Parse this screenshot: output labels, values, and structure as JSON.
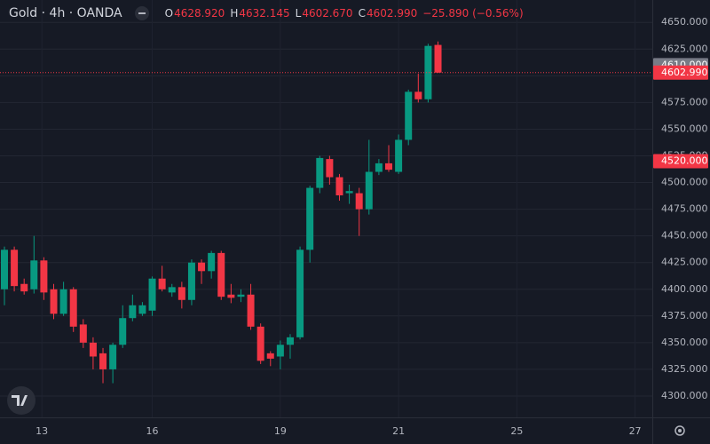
{
  "chart_data": {
    "type": "candlestick",
    "symbol": "Gold · 4h · OANDA",
    "ohlc_header": [
      {
        "key": "O",
        "value": 4628.92,
        "label": "4628.920"
      },
      {
        "key": "H",
        "value": 4632.145,
        "label": "4632.145"
      },
      {
        "key": "L",
        "value": 4602.67,
        "label": "4602.670"
      },
      {
        "key": "C",
        "value": 4602.99,
        "label": "4602.990"
      }
    ],
    "change": "−25.890 (−0.56%)",
    "up_color": "#089981",
    "down_color": "#f23645",
    "x": [
      0,
      1,
      2,
      3,
      4,
      5,
      6,
      7,
      8,
      9,
      10,
      11,
      12,
      13,
      14,
      15,
      16,
      17,
      18,
      19,
      20,
      21,
      22,
      23,
      24,
      25,
      26,
      27,
      28,
      29,
      30,
      31,
      32,
      33,
      34,
      35,
      36,
      37,
      38,
      39,
      40,
      41,
      42,
      43,
      44
    ],
    "open": [
      4400,
      4437,
      4405,
      4400,
      4427,
      4400,
      4377,
      4400,
      4367,
      4350,
      4340,
      4325,
      4348,
      4373,
      4377,
      4380,
      4410,
      4397,
      4402,
      4390,
      4425,
      4417,
      4434,
      4395,
      4393,
      4395,
      4365,
      4340,
      4337,
      4348,
      4355,
      4437,
      4495,
      4522,
      4505,
      4490,
      4490,
      4475,
      4510,
      4518,
      4510,
      4540,
      4585,
      4578,
      4628.92
    ],
    "high": [
      4440,
      4440,
      4410,
      4450,
      4430,
      4405,
      4407,
      4402,
      4372,
      4355,
      4345,
      4350,
      4385,
      4395,
      4388,
      4412,
      4422,
      4405,
      4407,
      4428,
      4428,
      4436,
      4436,
      4405,
      4400,
      4405,
      4368,
      4342,
      4352,
      4358,
      4440,
      4497,
      4525,
      4525,
      4508,
      4498,
      4495,
      4540,
      4522,
      4535,
      4545,
      4587,
      4602,
      4630,
      4632.145
    ],
    "low": [
      4385,
      4398,
      4395,
      4396,
      4390,
      4372,
      4375,
      4360,
      4345,
      4325,
      4312,
      4312,
      4345,
      4370,
      4375,
      4375,
      4398,
      4393,
      4382,
      4385,
      4405,
      4410,
      4390,
      4387,
      4388,
      4362,
      4330,
      4328,
      4325,
      4335,
      4353,
      4425,
      4490,
      4498,
      4483,
      4480,
      4450,
      4470,
      4507,
      4510,
      4508,
      4535,
      4575,
      4575,
      4602.67
    ],
    "close": [
      4437,
      4403,
      4398,
      4427,
      4397,
      4377,
      4400,
      4365,
      4350,
      4337,
      4325,
      4348,
      4373,
      4385,
      4385,
      4410,
      4400,
      4402,
      4390,
      4425,
      4417,
      4434,
      4393,
      4392,
      4395,
      4365,
      4333,
      4335,
      4348,
      4355,
      4437,
      4495,
      4523,
      4505,
      4488,
      4492,
      4475,
      4510,
      4518,
      4512,
      4540,
      4585,
      4578,
      4628,
      4602.99
    ],
    "xlim": [
      -0.45,
      65.75
    ],
    "xticks": [
      {
        "value": 3.8,
        "label": "13"
      },
      {
        "value": 15,
        "label": "16"
      },
      {
        "value": 28,
        "label": "19"
      },
      {
        "value": 40,
        "label": "21"
      },
      {
        "value": 52,
        "label": "25"
      },
      {
        "value": 64,
        "label": "27"
      }
    ],
    "ylim": [
      4280,
      4671
    ],
    "yticks": [
      {
        "value": 4300,
        "label": "4300.000"
      },
      {
        "value": 4325,
        "label": "4325.000"
      },
      {
        "value": 4350,
        "label": "4350.000"
      },
      {
        "value": 4375,
        "label": "4375.000"
      },
      {
        "value": 4400,
        "label": "4400.000"
      },
      {
        "value": 4425,
        "label": "4425.000"
      },
      {
        "value": 4450,
        "label": "4450.000"
      },
      {
        "value": 4475,
        "label": "4475.000"
      },
      {
        "value": 4500,
        "label": "4500.000"
      },
      {
        "value": 4525,
        "label": "4525.000"
      },
      {
        "value": 4550,
        "label": "4550.000"
      },
      {
        "value": 4575,
        "label": "4575.000"
      },
      {
        "value": 4600,
        "label": "4600.000"
      },
      {
        "value": 4625,
        "label": "4625.000"
      },
      {
        "value": 4650,
        "label": "4650.000"
      }
    ],
    "grid": true,
    "price_markers": [
      {
        "value": 4610,
        "label": "4610.000",
        "color": "#787b86"
      },
      {
        "value": 4602.99,
        "label": "4602.990",
        "color": "#f23645",
        "dotted_line": true
      },
      {
        "value": 4520,
        "label": "4520.000",
        "color": "#f23645"
      }
    ]
  }
}
